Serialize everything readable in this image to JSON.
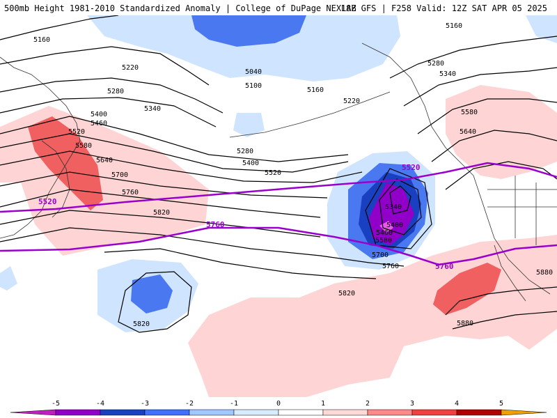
{
  "header": {
    "left": "500mb Height 1981-2010 Standardized Anomaly | College of DuPage NEXLAB",
    "right": "18Z GFS | F258 Valid: 12Z SAT APR 05 2025"
  },
  "map_labels": {
    "h5160_a": "5160",
    "h5160_b": "5160",
    "h5220_a": "5220",
    "h5220_b": "5220",
    "h5280_a": "5280",
    "h5280_b": "5280",
    "h5280_c": "5280",
    "h5340_a": "5340",
    "h5340_b": "5340",
    "h5040": "5040",
    "h5100": "5100",
    "h5160_c": "5160",
    "h5400_a": "5400",
    "h5400_b": "5400",
    "h5460": "5460",
    "h5520_a": "5520",
    "h5520_b": "5520",
    "h5580_a": "5580",
    "h5580_b": "5580",
    "h5640_a": "5640",
    "h5640_b": "5640",
    "h5700_a": "5700",
    "h5700_b": "5700",
    "h5760_a": "5760",
    "h5760_b": "5760",
    "h5820_a": "5820",
    "h5820_b": "5820",
    "h5820_c": "5820",
    "h5880_a": "5880",
    "h5880_b": "5880",
    "low_5340": "5340",
    "low_5400": "5400",
    "low_5460": "5460",
    "low_5580": "5580",
    "purple_5520_a": "5520",
    "purple_5520_b": "5520",
    "purple_5760_a": "5760",
    "purple_5760_b": "5760"
  },
  "legend": {
    "ticks": [
      "-5",
      "-4",
      "-3",
      "-2",
      "-1",
      "0",
      "1",
      "2",
      "3",
      "4",
      "5"
    ],
    "colors": [
      "#c020c0",
      "#9000c8",
      "#1840c0",
      "#4070ff",
      "#a0c8ff",
      "#d8ecff",
      "#ffffff",
      "#ffd8d8",
      "#ff8888",
      "#f04040",
      "#b00000",
      "#f0a000"
    ]
  },
  "colors": {
    "contour": "#000000",
    "reference_contour": "#9900cc",
    "land_outline": "#333333"
  }
}
